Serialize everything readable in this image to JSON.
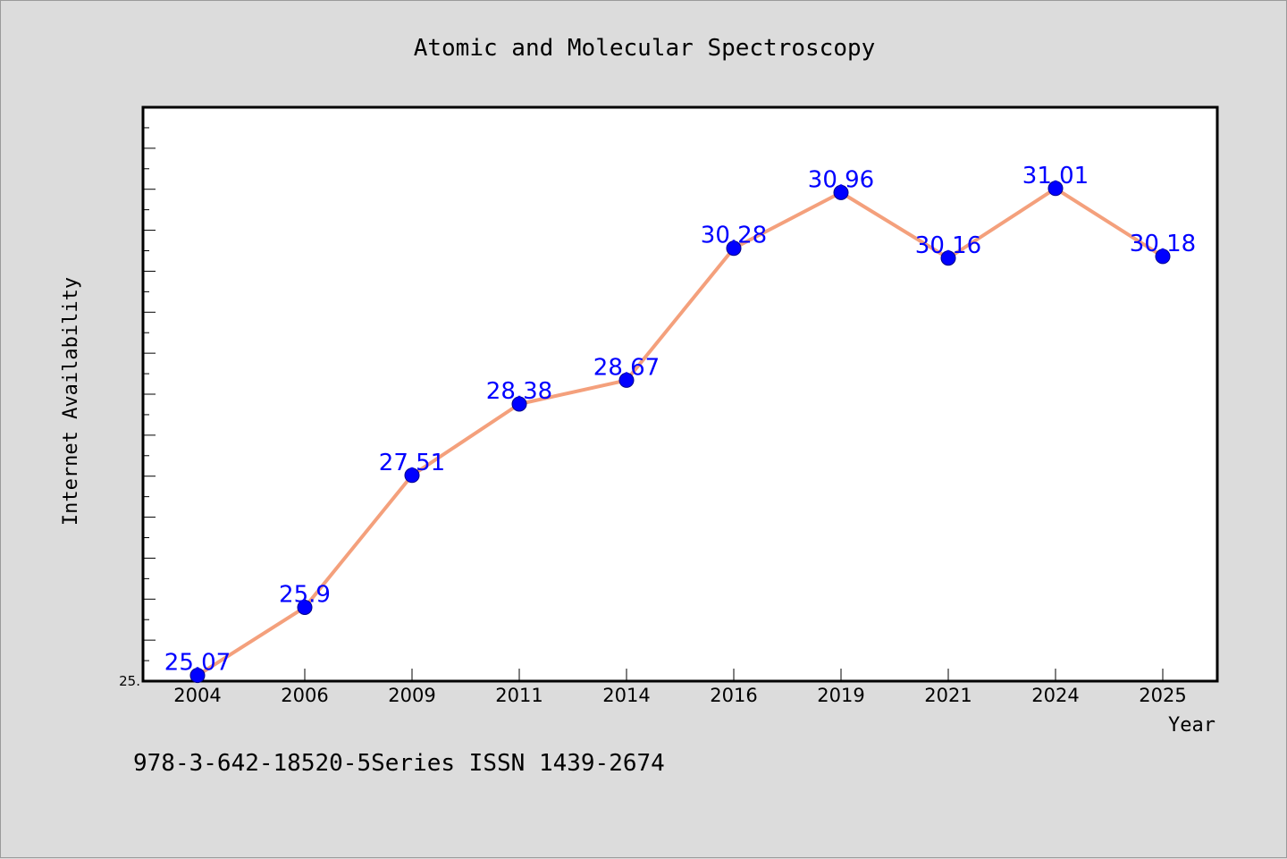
{
  "chart_data": {
    "type": "line",
    "title": "Atomic and Molecular Spectroscopy",
    "xlabel": "Year",
    "ylabel": "Internet Availability",
    "categories": [
      "2004",
      "2006",
      "2009",
      "2011",
      "2014",
      "2016",
      "2019",
      "2021",
      "2024",
      "2025"
    ],
    "series": [
      {
        "values": [
          25.07,
          25.9,
          27.51,
          28.38,
          28.67,
          30.28,
          30.96,
          30.16,
          31.01,
          30.18
        ],
        "labels": [
          "25.07",
          "25.9",
          "27.51",
          "28.38",
          "28.67",
          "30.28",
          "30.96",
          "30.16",
          "31.01",
          "30.18"
        ]
      }
    ],
    "y_tick_labels": [
      "25."
    ],
    "ylim": [
      25.0,
      32.0
    ],
    "grid": false,
    "legend": "none",
    "colors": {
      "line": "#f4a07c",
      "marker": "#0000ff",
      "label": "#0000ff"
    }
  },
  "footer_text": "978-3-642-18520-5Series ISSN 1439-2674"
}
